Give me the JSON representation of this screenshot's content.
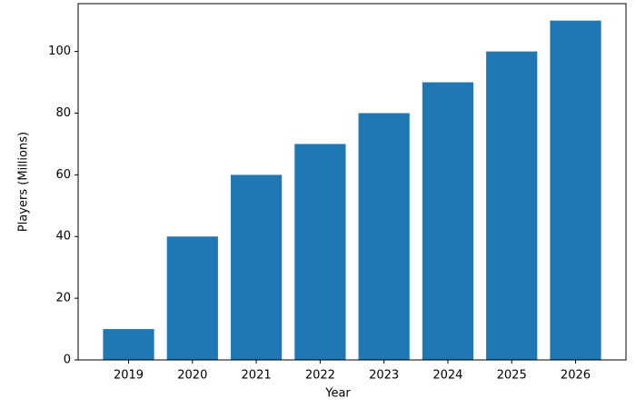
{
  "chart_data": {
    "type": "bar",
    "x_label": "Year",
    "y_label": "Players (Millions)",
    "categories": [
      "2019",
      "2020",
      "2021",
      "2022",
      "2023",
      "2024",
      "2025",
      "2026"
    ],
    "values": [
      10,
      40,
      60,
      70,
      80,
      90,
      100,
      110
    ],
    "color": "#1f77b4",
    "ylim": [
      0,
      115.5
    ],
    "yticks": [
      0,
      20,
      40,
      60,
      80,
      100
    ],
    "grid": false
  }
}
